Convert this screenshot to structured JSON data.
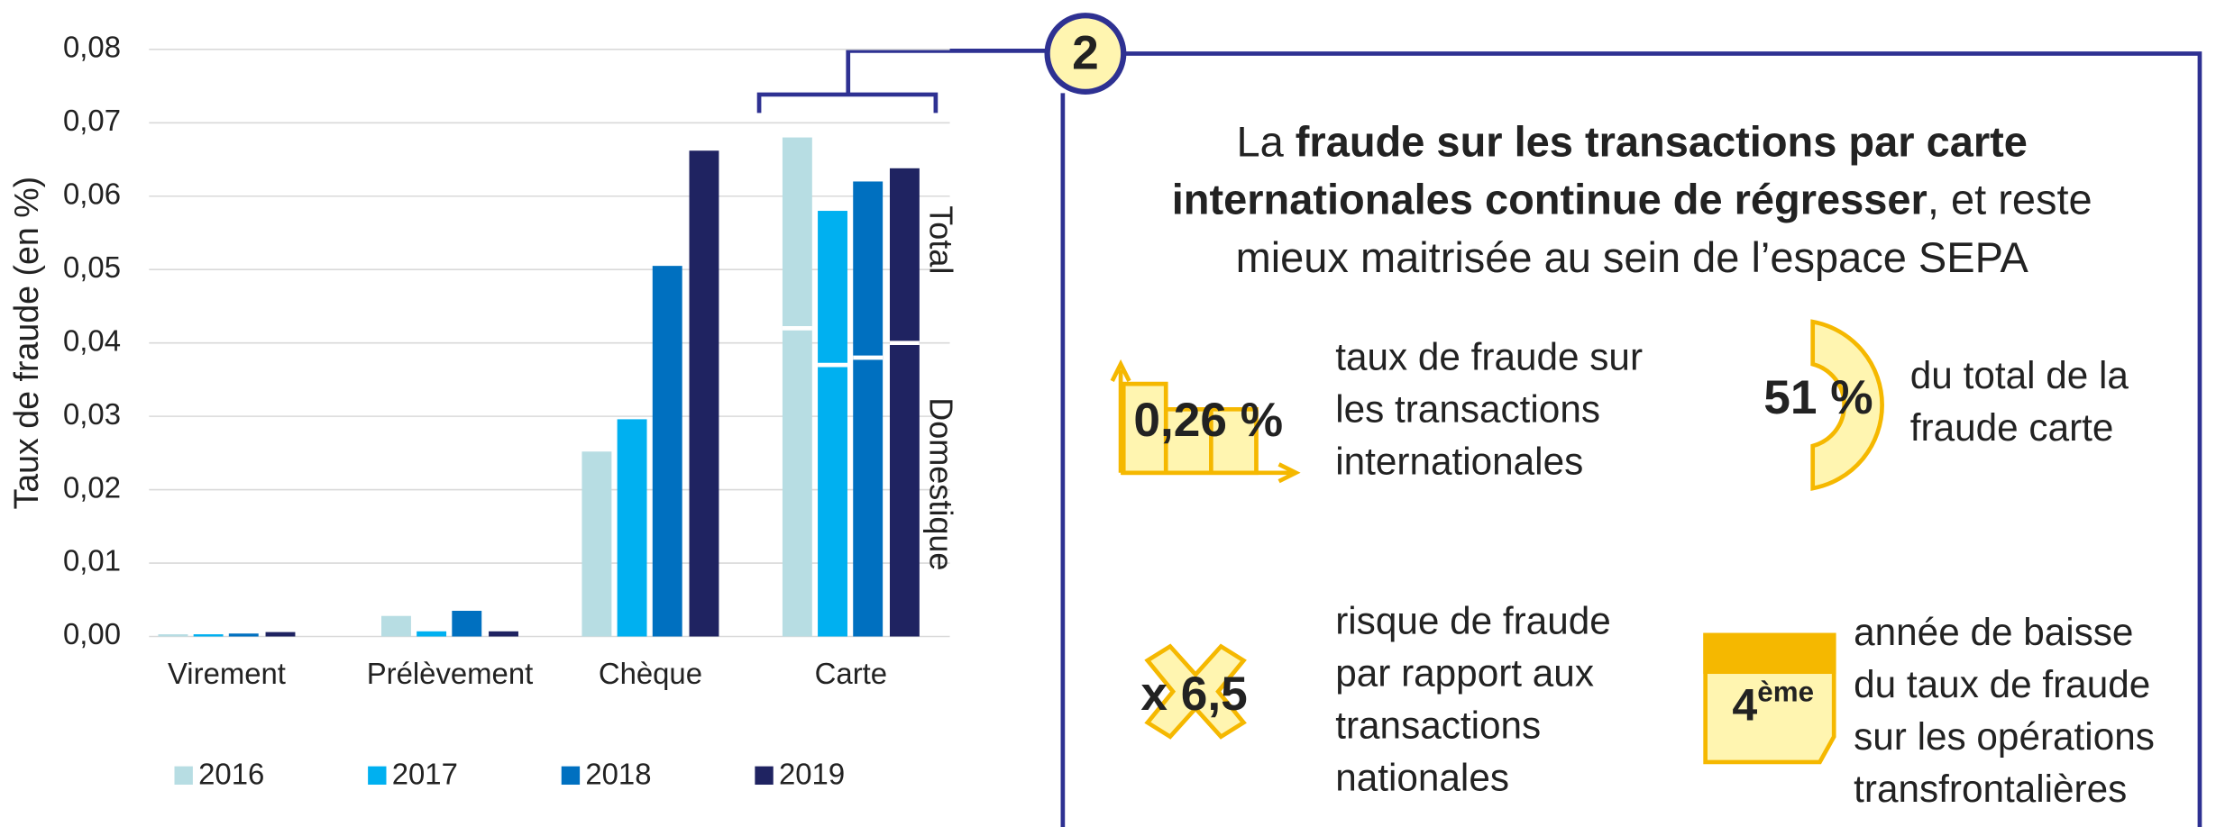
{
  "chart_data": {
    "type": "bar",
    "y_label": "Taux de fraude (en %)",
    "categories": [
      "Virement",
      "Prélèvement",
      "Chèque",
      "Carte"
    ],
    "series": [
      {
        "name": "2016",
        "color": "#b7dde3",
        "values": [
          0.0003,
          0.0028,
          0.0252,
          0.068
        ],
        "domestic_values": [
          null,
          null,
          null,
          0.042
        ]
      },
      {
        "name": "2017",
        "color": "#00b0f0",
        "values": [
          0.0003,
          0.0007,
          0.0296,
          0.058
        ],
        "domestic_values": [
          null,
          null,
          null,
          0.037
        ]
      },
      {
        "name": "2018",
        "color": "#0070c0",
        "values": [
          0.0004,
          0.0035,
          0.0505,
          0.062
        ],
        "domestic_values": [
          null,
          null,
          null,
          0.038
        ]
      },
      {
        "name": "2019",
        "color": "#1f2361",
        "values": [
          0.0006,
          0.0007,
          0.0662,
          0.0638
        ],
        "domestic_values": [
          null,
          null,
          null,
          0.04
        ]
      }
    ],
    "ylim": [
      0,
      0.08
    ],
    "yticks": [
      {
        "value": 0,
        "label": "0,00"
      },
      {
        "value": 0.01,
        "label": "0,01"
      },
      {
        "value": 0.02,
        "label": "0,02"
      },
      {
        "value": 0.03,
        "label": "0,03"
      },
      {
        "value": 0.04,
        "label": "0,04"
      },
      {
        "value": 0.05,
        "label": "0,05"
      },
      {
        "value": 0.06,
        "label": "0,06"
      },
      {
        "value": 0.07,
        "label": "0,07"
      },
      {
        "value": 0.08,
        "label": "0,08"
      }
    ],
    "grid": true,
    "annotations": [
      "Total",
      "Domestique"
    ]
  },
  "panel": {
    "number": "2",
    "headline": [
      [
        {
          "text": "La ",
          "bold": false
        },
        {
          "text": "fraude sur les transactions par carte",
          "bold": true
        }
      ],
      [
        {
          "text": "internationales continue de régresser",
          "bold": true
        },
        {
          "text": ", et reste",
          "bold": false
        }
      ],
      [
        {
          "text": "mieux maitrisée au sein de l’espace SEPA",
          "bold": false
        }
      ]
    ],
    "stats": [
      {
        "value": "0,26 %",
        "lines": [
          "taux de fraude sur",
          "les transactions",
          "internationales"
        ]
      },
      {
        "value": "51 %",
        "lines": [
          "du total de la",
          "fraude carte"
        ]
      },
      {
        "value": "x 6,5",
        "lines": [
          "risque de fraude",
          "par rapport aux",
          "transactions",
          "nationales"
        ]
      },
      {
        "value": "4",
        "sup": "ème",
        "lines": [
          "année de baisse",
          "du taux de fraude",
          "sur les opérations",
          "transfrontalières"
        ]
      }
    ]
  }
}
